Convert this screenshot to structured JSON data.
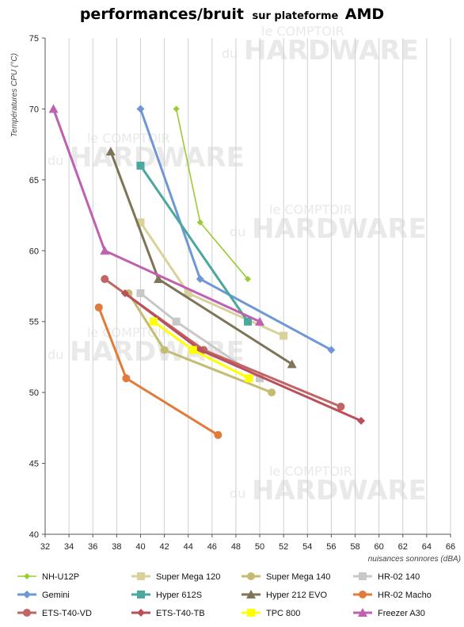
{
  "title": {
    "main": "performances/bruit",
    "mid": "sur plateforme",
    "end": "AMD"
  },
  "watermark": {
    "line1": "le COMPTOIR",
    "prefix": "du",
    "line2": "HARDWARE"
  },
  "chart_data": {
    "type": "line",
    "xlabel": "nuisances sonnores (dBA)",
    "ylabel": "Températures CPU (°C)",
    "xlim": [
      32,
      66
    ],
    "ylim": [
      40,
      75
    ],
    "x_ticks": [
      "32",
      "34",
      "36",
      "38",
      "40",
      "42",
      "44",
      "46",
      "48",
      "50",
      "52",
      "54",
      "56",
      "58",
      "60",
      "62",
      "64",
      "66"
    ],
    "y_ticks": [
      "40",
      "45",
      "50",
      "55",
      "60",
      "65",
      "70",
      "75"
    ],
    "grid": "vertical",
    "legend_position": "bottom",
    "series": [
      {
        "name": "NH-U12P",
        "color": "#99cc33",
        "marker": "diamond-small",
        "points": [
          [
            43,
            70
          ],
          [
            45,
            62
          ],
          [
            49,
            58
          ]
        ]
      },
      {
        "name": "Super Mega 120",
        "color": "#d8d29a",
        "marker": "square",
        "points": [
          [
            40,
            62
          ],
          [
            44,
            57
          ],
          [
            52,
            54
          ]
        ]
      },
      {
        "name": "Super Mega 140",
        "color": "#c4bc72",
        "marker": "circle",
        "points": [
          [
            39,
            57
          ],
          [
            42,
            53
          ],
          [
            51,
            50
          ]
        ]
      },
      {
        "name": "HR-02 140",
        "color": "#c8c8c8",
        "marker": "square",
        "points": [
          [
            40,
            57
          ],
          [
            43,
            55
          ],
          [
            50,
            51
          ]
        ]
      },
      {
        "name": "Gemini",
        "color": "#6f97d6",
        "marker": "diamond",
        "points": [
          [
            40,
            70
          ],
          [
            45,
            58
          ],
          [
            56,
            53
          ]
        ]
      },
      {
        "name": "Hyper 612S",
        "color": "#4aa89c",
        "marker": "square",
        "points": [
          [
            40,
            66
          ],
          [
            49,
            55
          ]
        ]
      },
      {
        "name": "Hyper 212 EVO",
        "color": "#7e7458",
        "marker": "triangle",
        "points": [
          [
            37.5,
            67
          ],
          [
            41.5,
            58
          ],
          [
            52.7,
            52
          ]
        ]
      },
      {
        "name": "HR-02 Macho",
        "color": "#e07b3a",
        "marker": "circle",
        "points": [
          [
            36.5,
            56
          ],
          [
            38.8,
            51
          ],
          [
            46.5,
            47
          ]
        ]
      },
      {
        "name": "ETS-T40-VD",
        "color": "#c06464",
        "marker": "circle",
        "points": [
          [
            37,
            58
          ],
          [
            45.3,
            53
          ],
          [
            56.8,
            49
          ]
        ]
      },
      {
        "name": "ETS-T40-TB",
        "color": "#bb4f5a",
        "marker": "diamond",
        "points": [
          [
            38.7,
            57
          ],
          [
            45,
            53
          ],
          [
            58.5,
            48
          ]
        ]
      },
      {
        "name": "TPC 800",
        "color": "#ffff00",
        "marker": "square",
        "points": [
          [
            41.1,
            55
          ],
          [
            44.4,
            53
          ],
          [
            49.1,
            51
          ]
        ]
      },
      {
        "name": "Freezer A30",
        "color": "#c060b0",
        "marker": "triangle",
        "points": [
          [
            32.7,
            70
          ],
          [
            37,
            60
          ],
          [
            50,
            55
          ]
        ]
      }
    ]
  }
}
